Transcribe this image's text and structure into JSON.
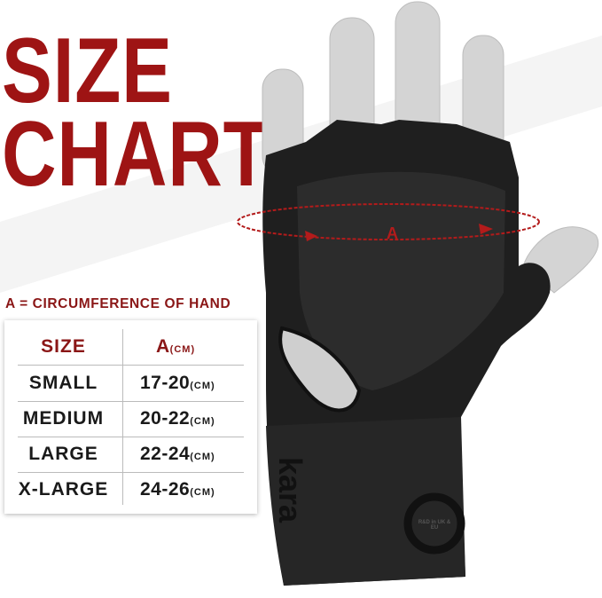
{
  "title": {
    "line1": "SIZE",
    "line2": "CHART"
  },
  "caption": "A = CIRCUMFERENCE OF HAND",
  "measure_label": "A",
  "table": {
    "headers": {
      "size": "SIZE",
      "measure": "A",
      "unit": "(CM)"
    },
    "rows": [
      {
        "size": "SMALL",
        "range": "17-20",
        "unit": "(CM)"
      },
      {
        "size": "MEDIUM",
        "range": "20-22",
        "unit": "(CM)"
      },
      {
        "size": "LARGE",
        "range": "22-24",
        "unit": "(CM)"
      },
      {
        "size": "X-LARGE",
        "range": "24-26",
        "unit": "(CM)"
      }
    ]
  },
  "brand": "kara",
  "badge_text": "R&D in UK & EU",
  "colors": {
    "accent": "#9e1414",
    "glove": "#1f1f1f",
    "skin": "#d6d6d6"
  }
}
